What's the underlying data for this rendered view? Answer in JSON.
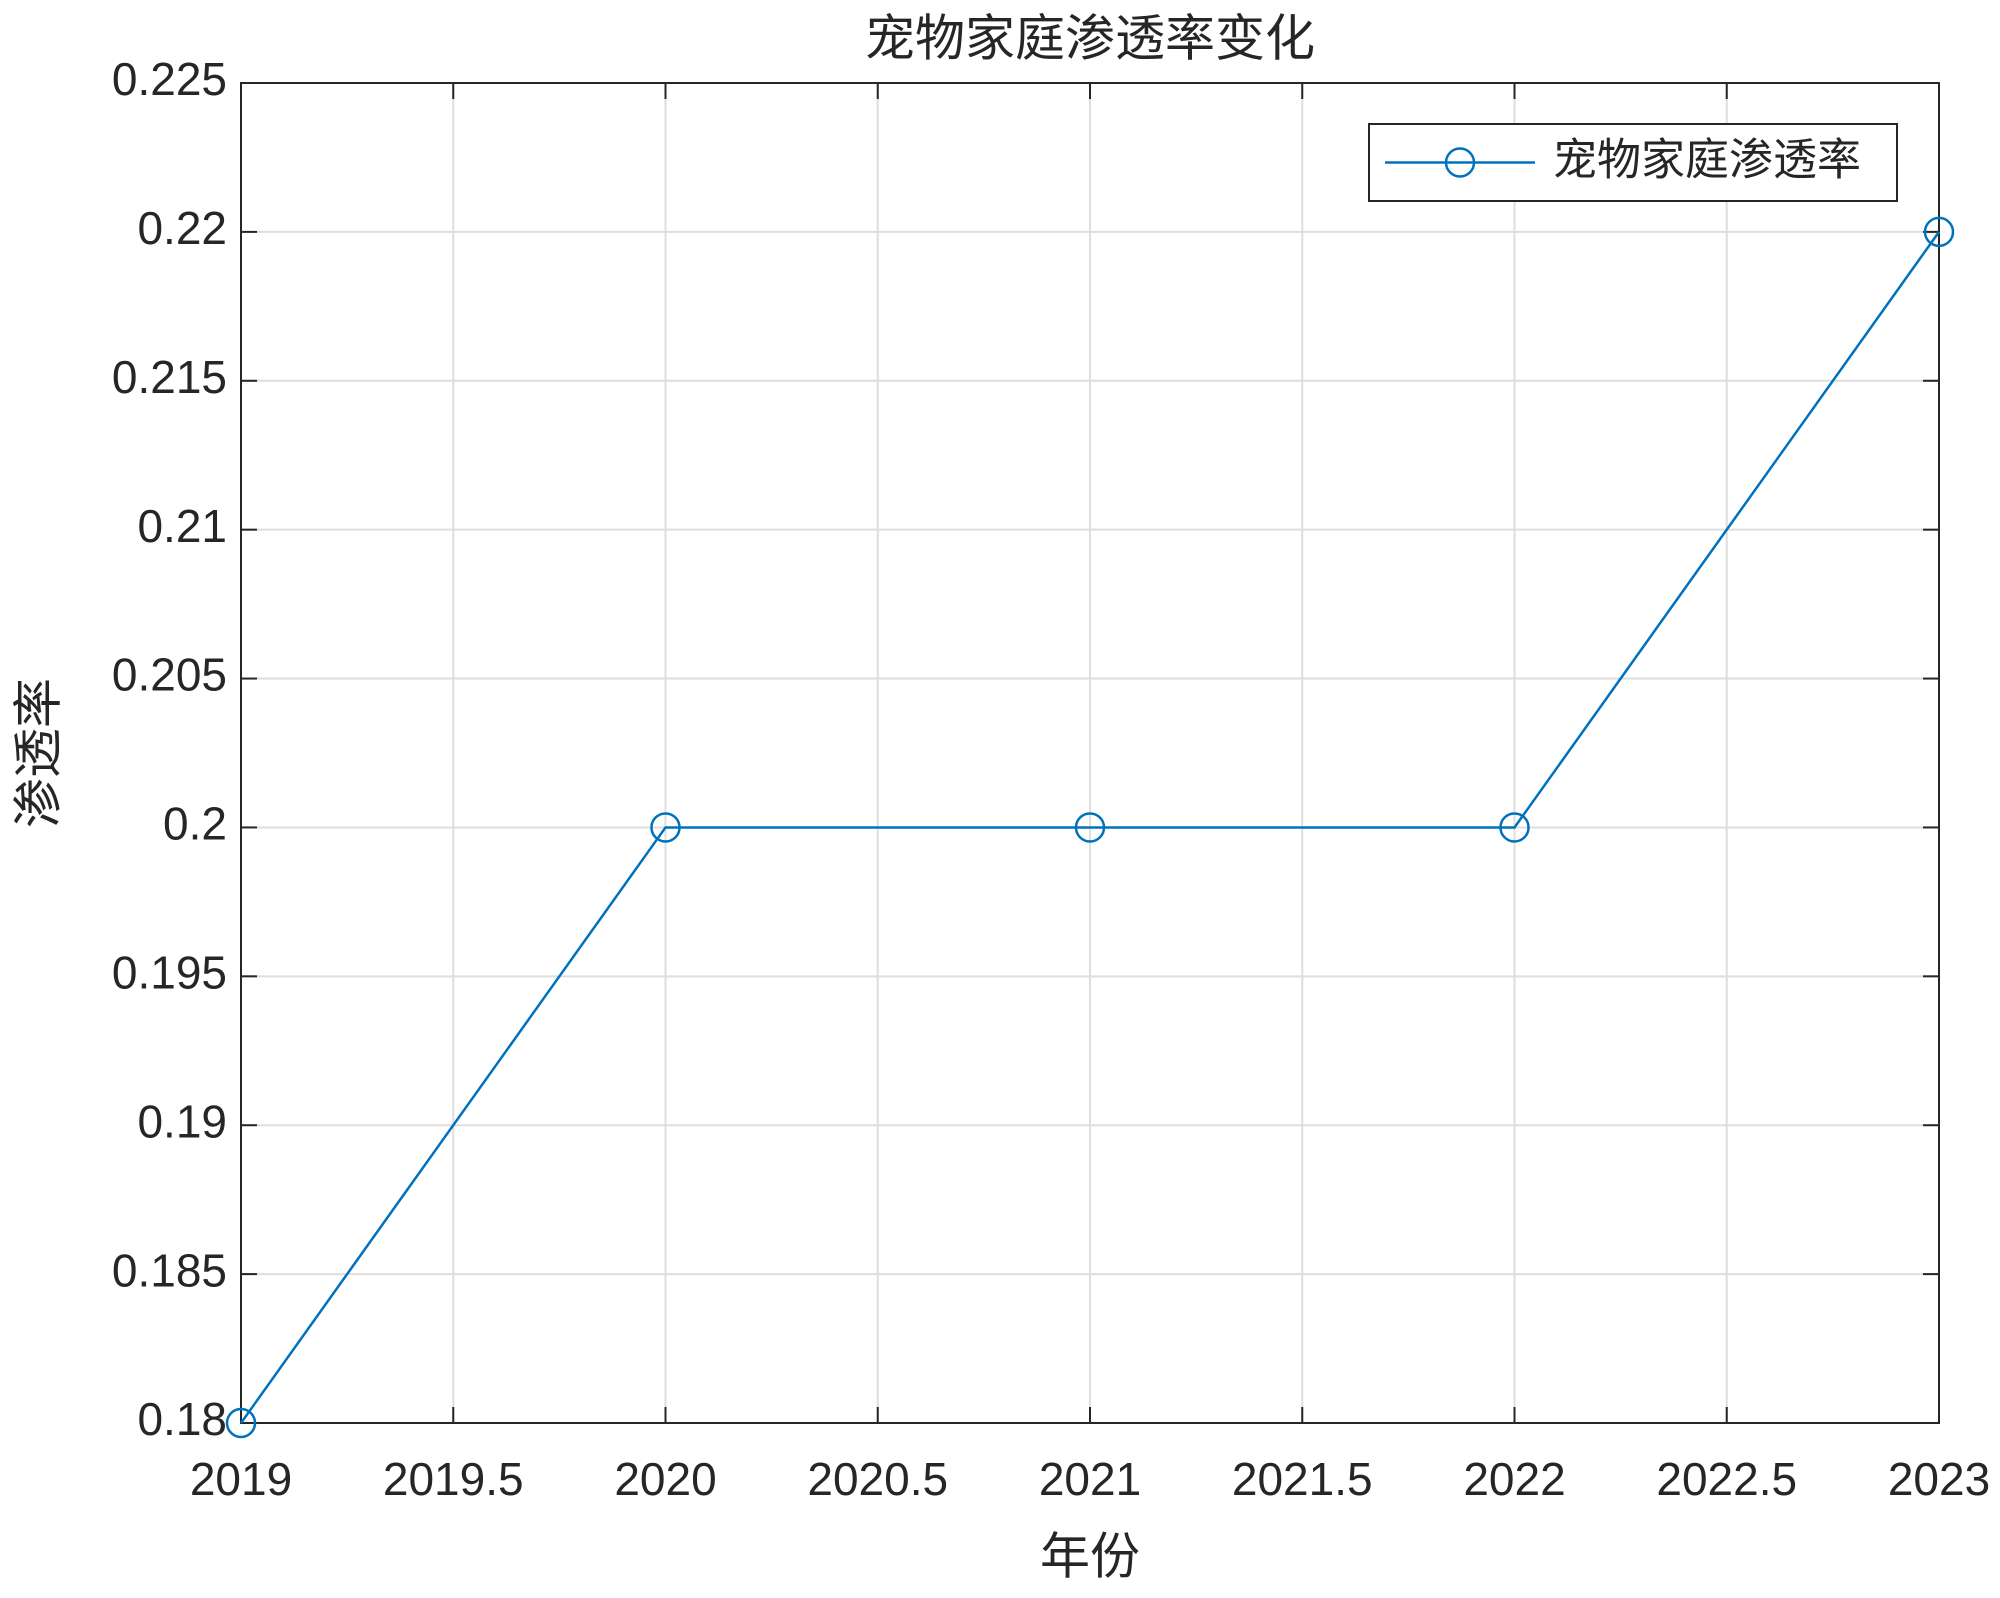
{
  "chart_data": {
    "type": "line",
    "title": "宠物家庭渗透率变化",
    "xlabel": "年份",
    "ylabel": "渗透率",
    "x": [
      2019,
      2020,
      2021,
      2022,
      2023
    ],
    "series": [
      {
        "name": "宠物家庭渗透率",
        "color": "#0072bd",
        "values": [
          0.18,
          0.2,
          0.2,
          0.2,
          0.22
        ]
      }
    ],
    "xlim": [
      2019,
      2023
    ],
    "xticks": [
      2019,
      2019.5,
      2020,
      2020.5,
      2021,
      2021.5,
      2022,
      2022.5,
      2023
    ],
    "ylim": [
      0.18,
      0.225
    ],
    "yticks": [
      0.18,
      0.185,
      0.19,
      0.195,
      0.2,
      0.205,
      0.21,
      0.215,
      0.22,
      0.225
    ],
    "grid": true,
    "legend": "northeast",
    "marker": "circle"
  }
}
